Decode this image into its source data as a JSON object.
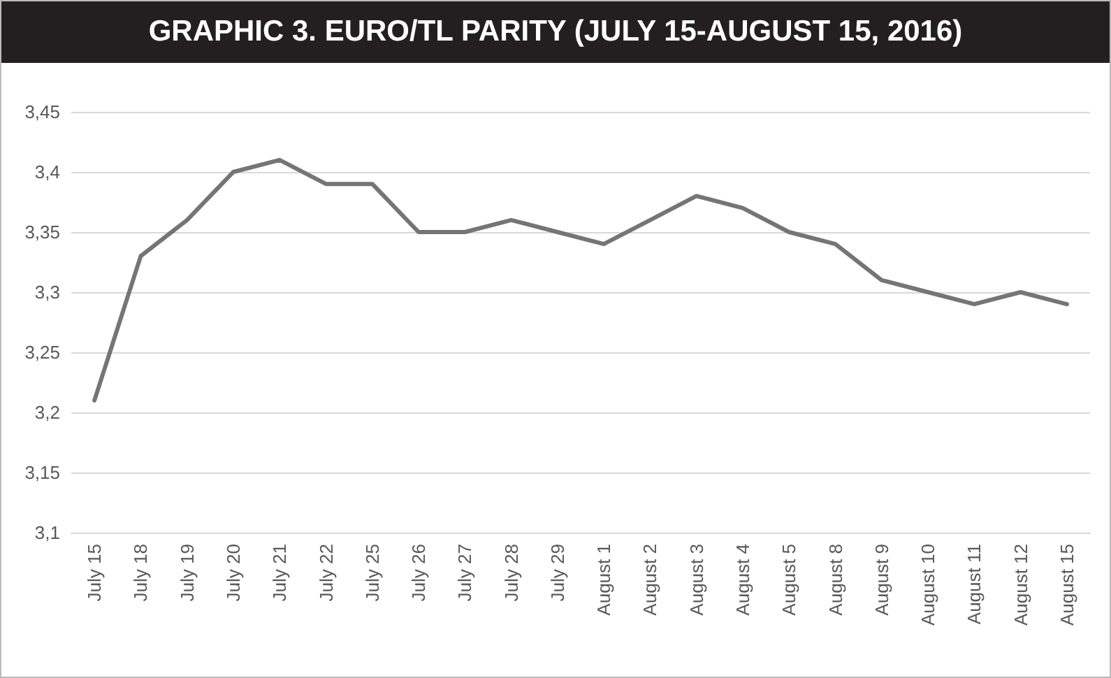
{
  "chart_data": {
    "type": "line",
    "title": "GRAPHIC 3. EURO/TL PARITY (JULY 15-AUGUST 15, 2016)",
    "categories": [
      "July 15",
      "July 18",
      "July 19",
      "July 20",
      "July 21",
      "July 22",
      "July 25",
      "July 26",
      "July 27",
      "July 28",
      "July 29",
      "August 1",
      "August 2",
      "August 3",
      "August 4",
      "August 5",
      "August 8",
      "August 9",
      "August 10",
      "August 11",
      "August 12",
      "August 15"
    ],
    "series": [
      {
        "color": "#757575",
        "values": [
          3.21,
          3.33,
          3.36,
          3.4,
          3.41,
          3.39,
          3.39,
          3.35,
          3.35,
          3.36,
          3.35,
          3.34,
          3.36,
          3.38,
          3.37,
          3.35,
          3.34,
          3.31,
          3.3,
          3.29,
          3.3,
          3.29
        ]
      }
    ],
    "ylim": [
      3.1,
      3.45
    ],
    "yticks": [
      {
        "value": 3.1,
        "label": "3,1"
      },
      {
        "value": 3.15,
        "label": "3,15"
      },
      {
        "value": 3.2,
        "label": "3,2"
      },
      {
        "value": 3.25,
        "label": "3,25"
      },
      {
        "value": 3.3,
        "label": "3,3"
      },
      {
        "value": 3.35,
        "label": "3,35"
      },
      {
        "value": 3.4,
        "label": "3,4"
      },
      {
        "value": 3.45,
        "label": "3,45"
      }
    ],
    "grid": "y",
    "marker": "none",
    "line_style": "solid"
  }
}
